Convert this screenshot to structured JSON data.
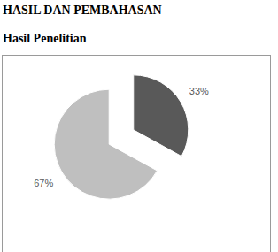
{
  "document": {
    "heading": "HASIL DAN PEMBAHASAN",
    "subheading": "Hasil Penelitian"
  },
  "chart_data": {
    "type": "pie",
    "values": [
      33,
      67
    ],
    "value_labels": [
      "33%",
      "67%"
    ],
    "colors": [
      "#595959",
      "#bfbfbf"
    ],
    "data_labels": true
  }
}
